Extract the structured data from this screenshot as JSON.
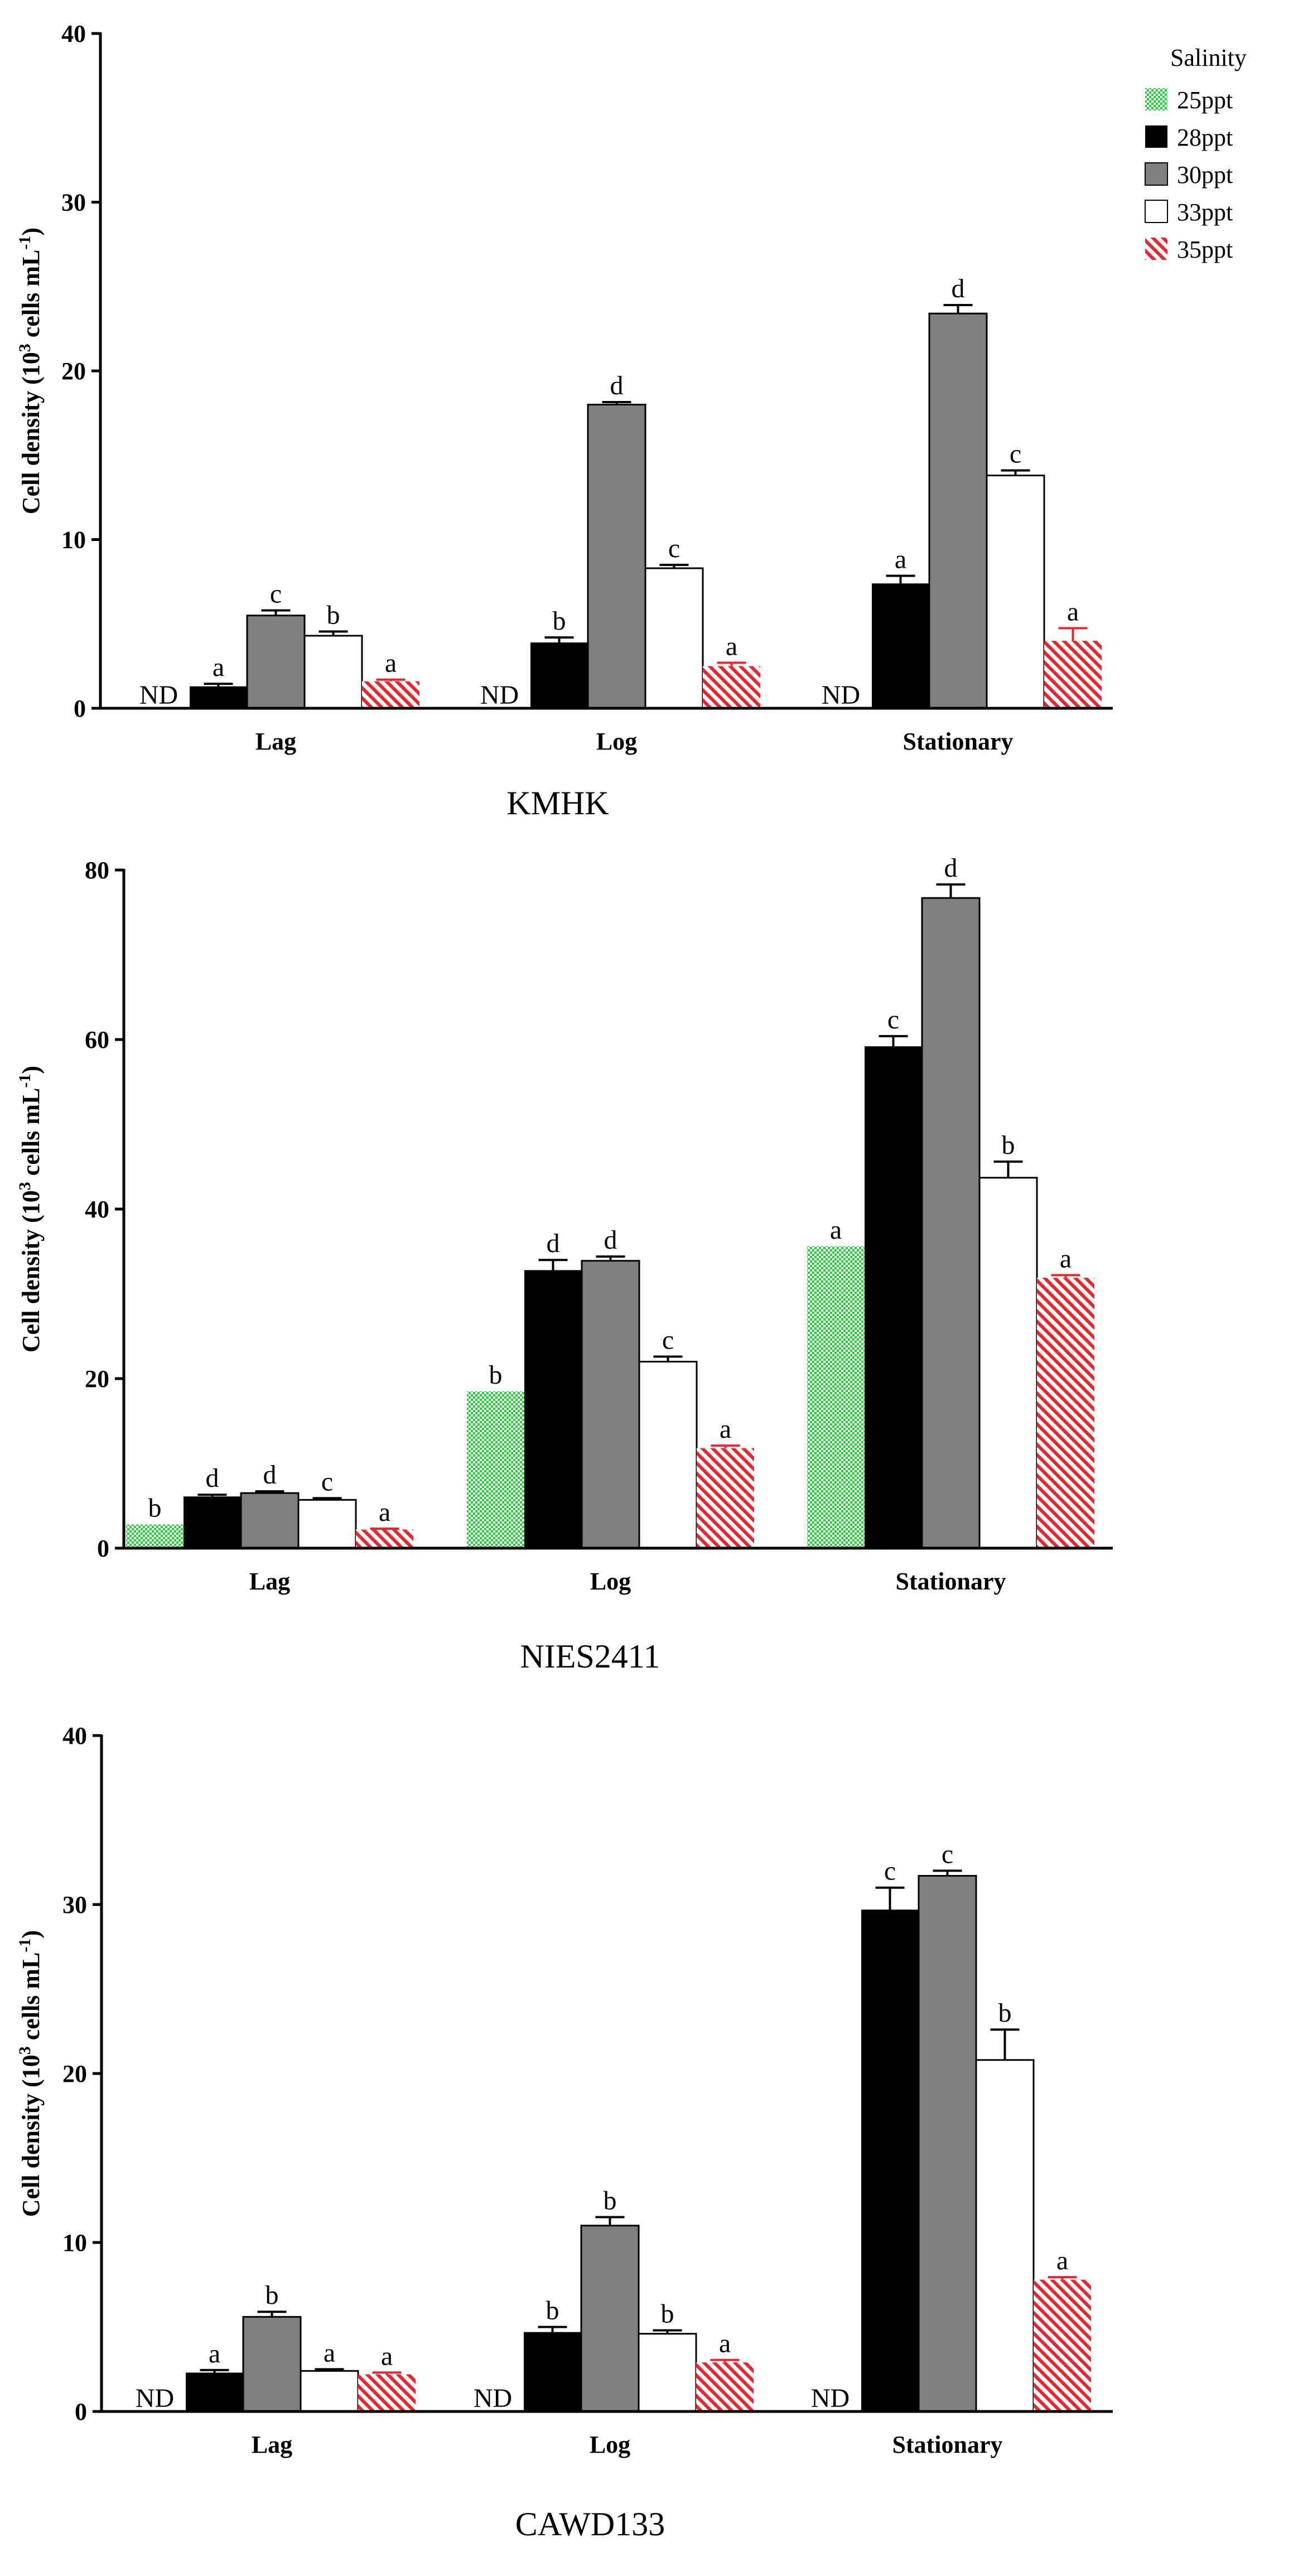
{
  "chart_data": [
    {
      "type": "bar",
      "title": "KMHK",
      "ylabel": "Cell density (10^3 cells mL^-1)",
      "ylim": [
        0,
        40
      ],
      "yticks": [
        0,
        10,
        20,
        30,
        40
      ],
      "categories": [
        "Lag",
        "Log",
        "Stationary"
      ],
      "series": [
        {
          "name": "25ppt",
          "values": [
            null,
            null,
            null
          ],
          "errors": [
            0,
            0,
            0
          ],
          "labels": [
            "ND",
            "ND",
            "ND"
          ]
        },
        {
          "name": "28ppt",
          "values": [
            1.3,
            3.9,
            7.4
          ],
          "errors": [
            0.15,
            0.3,
            0.45
          ],
          "labels": [
            "a",
            "b",
            "a"
          ]
        },
        {
          "name": "30ppt",
          "values": [
            5.5,
            18.0,
            23.4
          ],
          "errors": [
            0.3,
            0.15,
            0.5
          ],
          "labels": [
            "c",
            "d",
            "d"
          ]
        },
        {
          "name": "33ppt",
          "values": [
            4.3,
            8.3,
            13.8
          ],
          "errors": [
            0.25,
            0.2,
            0.3
          ],
          "labels": [
            "b",
            "c",
            "c"
          ]
        },
        {
          "name": "35ppt",
          "values": [
            1.6,
            2.5,
            4.0
          ],
          "errors": [
            0.1,
            0.2,
            0.75
          ],
          "labels": [
            "a",
            "a",
            "a"
          ]
        }
      ]
    },
    {
      "type": "bar",
      "title": "NIES2411",
      "ylabel": "Cell density (10^3 cells mL^-1)",
      "ylim": [
        0,
        80
      ],
      "yticks": [
        0,
        20,
        40,
        60,
        80
      ],
      "categories": [
        "Lag",
        "Log",
        "Stationary"
      ],
      "series": [
        {
          "name": "25ppt",
          "values": [
            2.8,
            18.5,
            35.6
          ],
          "errors": [
            0,
            0,
            0
          ],
          "labels": [
            "b",
            "b",
            "a"
          ]
        },
        {
          "name": "28ppt",
          "values": [
            6.1,
            32.8,
            59.2
          ],
          "errors": [
            0.2,
            1.2,
            1.2
          ],
          "labels": [
            "d",
            "d",
            "c"
          ]
        },
        {
          "name": "30ppt",
          "values": [
            6.5,
            33.9,
            76.7
          ],
          "errors": [
            0.2,
            0.5,
            1.6
          ],
          "labels": [
            "d",
            "d",
            "d"
          ]
        },
        {
          "name": "33ppt",
          "values": [
            5.7,
            22.0,
            43.7
          ],
          "errors": [
            0.2,
            0.6,
            1.9
          ],
          "labels": [
            "c",
            "c",
            "b"
          ]
        },
        {
          "name": "35ppt",
          "values": [
            2.2,
            11.8,
            31.9
          ],
          "errors": [
            0.1,
            0.3,
            0.3
          ],
          "labels": [
            "a",
            "a",
            "a"
          ]
        }
      ]
    },
    {
      "type": "bar",
      "title": "CAWD133",
      "ylabel": "Cell density (10^3 cells mL^-1)",
      "ylim": [
        0,
        40
      ],
      "yticks": [
        0,
        10,
        20,
        30,
        40
      ],
      "categories": [
        "Lag",
        "Log",
        "Stationary"
      ],
      "series": [
        {
          "name": "25ppt",
          "values": [
            null,
            null,
            null
          ],
          "errors": [
            0,
            0,
            0
          ],
          "labels": [
            "ND",
            "ND",
            "ND"
          ]
        },
        {
          "name": "28ppt",
          "values": [
            2.3,
            4.7,
            29.7
          ],
          "errors": [
            0.15,
            0.3,
            1.3
          ],
          "labels": [
            "a",
            "b",
            "c"
          ]
        },
        {
          "name": "30ppt",
          "values": [
            5.6,
            11.0,
            31.7
          ],
          "errors": [
            0.3,
            0.5,
            0.3
          ],
          "labels": [
            "b",
            "b",
            "c"
          ]
        },
        {
          "name": "33ppt",
          "values": [
            2.4,
            4.6,
            20.8
          ],
          "errors": [
            0.1,
            0.2,
            1.8
          ],
          "labels": [
            "a",
            "b",
            "b"
          ]
        },
        {
          "name": "35ppt",
          "values": [
            2.2,
            2.9,
            7.8
          ],
          "errors": [
            0.1,
            0.15,
            0.15
          ],
          "labels": [
            "a",
            "a",
            "a"
          ]
        }
      ]
    }
  ],
  "legend": {
    "title": "Salinity",
    "entries": [
      {
        "name": "25ppt",
        "fill": "green-check"
      },
      {
        "name": "28ppt",
        "fill": "black"
      },
      {
        "name": "30ppt",
        "fill": "gray"
      },
      {
        "name": "33ppt",
        "fill": "white"
      },
      {
        "name": "35ppt",
        "fill": "red-hatch"
      }
    ]
  },
  "colors": {
    "green": "#22d13a",
    "black": "#000000",
    "gray": "#808080",
    "white": "#ffffff",
    "red": "#e8262d"
  }
}
